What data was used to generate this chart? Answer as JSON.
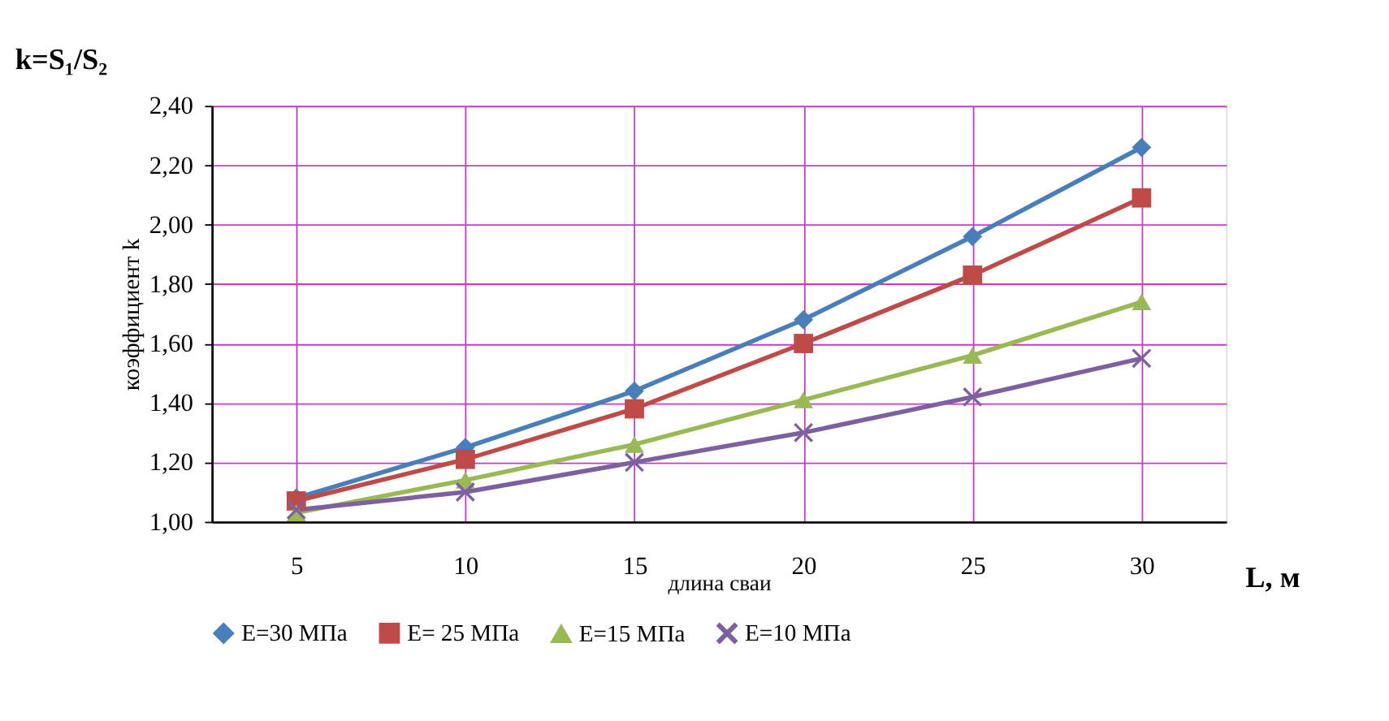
{
  "chart_data": {
    "type": "line",
    "title": "k=S₁/S₂",
    "xlabel": "длина сваи",
    "ylabel": "коэффициент k",
    "annotations": [
      "L, м"
    ],
    "categories": [
      "5",
      "10",
      "15",
      "20",
      "25",
      "30"
    ],
    "series": [
      {
        "name": "E=30 МПа",
        "color": "#4a7ebb",
        "marker": "diamond",
        "values": [
          1.08,
          1.25,
          1.44,
          1.68,
          1.96,
          2.26
        ]
      },
      {
        "name": "E= 25 МПа",
        "color": "#be4b48",
        "marker": "square",
        "values": [
          1.07,
          1.21,
          1.38,
          1.6,
          1.83,
          2.09
        ]
      },
      {
        "name": "E=15 МПа",
        "color": "#98b954",
        "marker": "triangle",
        "values": [
          1.03,
          1.14,
          1.26,
          1.41,
          1.56,
          1.74
        ]
      },
      {
        "name": "E=10 МПа",
        "color": "#7d60a0",
        "marker": "cross",
        "values": [
          1.04,
          1.1,
          1.2,
          1.3,
          1.42,
          1.55
        ]
      }
    ],
    "ylim": [
      1.0,
      2.4
    ],
    "yticks": [
      {
        "value": 1.0,
        "label": "1,00"
      },
      {
        "value": 1.2,
        "label": "1,20"
      },
      {
        "value": 1.4,
        "label": "1,40"
      },
      {
        "value": 1.6,
        "label": "1,60"
      },
      {
        "value": 1.8,
        "label": "1,80"
      },
      {
        "value": 2.0,
        "label": "2,00"
      },
      {
        "value": 2.2,
        "label": "2,20"
      },
      {
        "value": 2.4,
        "label": "2,40"
      }
    ],
    "grid": true,
    "legend": "bottom",
    "line_style": "solid"
  }
}
